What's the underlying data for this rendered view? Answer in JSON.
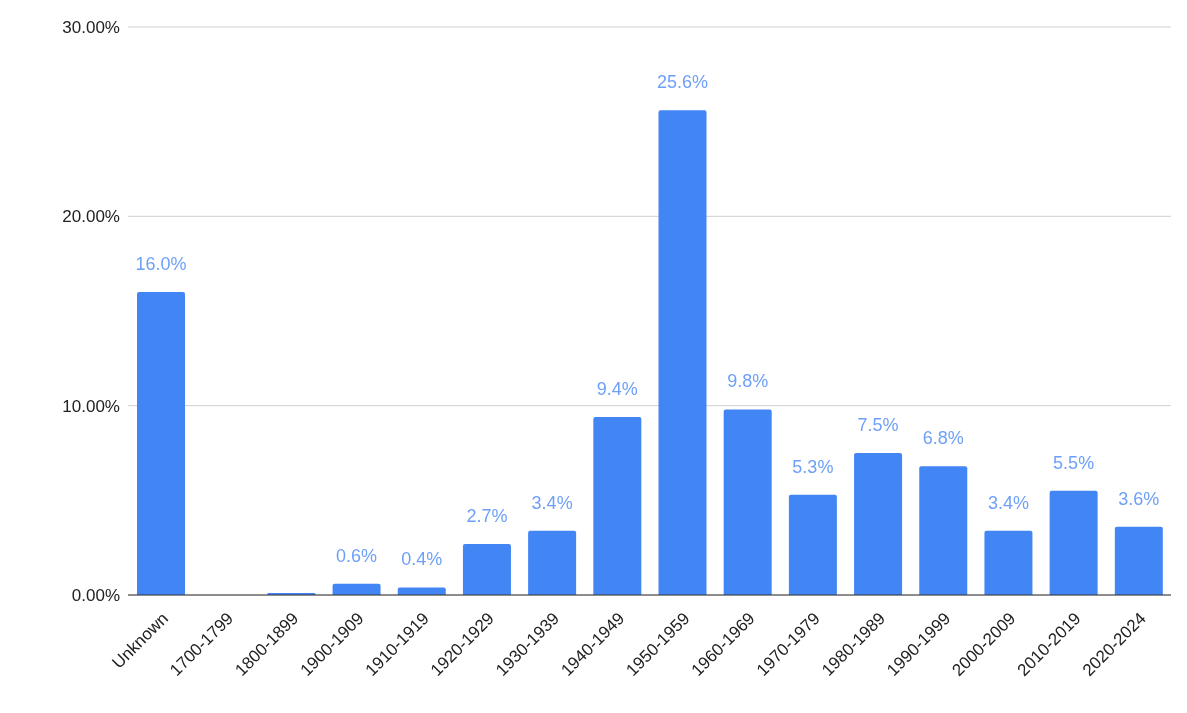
{
  "chart_data": {
    "type": "bar",
    "categories": [
      "Unknown",
      "1700-1799",
      "1800-1899",
      "1900-1909",
      "1910-1919",
      "1920-1929",
      "1930-1939",
      "1940-1949",
      "1950-1959",
      "1960-1969",
      "1970-1979",
      "1980-1989",
      "1990-1999",
      "2000-2009",
      "2010-2019",
      "2020-2024"
    ],
    "values": [
      16.0,
      0,
      0.1,
      0.6,
      0.4,
      2.7,
      3.4,
      9.4,
      25.6,
      9.8,
      5.3,
      7.5,
      6.8,
      3.4,
      5.5,
      3.6
    ],
    "value_labels": [
      "16.0%",
      null,
      null,
      "0.6%",
      "0.4%",
      "2.7%",
      "3.4%",
      "9.4%",
      "25.6%",
      "9.8%",
      "5.3%",
      "7.5%",
      "6.8%",
      "3.4%",
      "5.5%",
      "3.6%"
    ],
    "color": "#4285f4",
    "ylim": [
      0,
      30
    ],
    "yticks": [
      {
        "value": 0,
        "label": "0.00%"
      },
      {
        "value": 10,
        "label": "10.00%"
      },
      {
        "value": 20,
        "label": "20.00%"
      },
      {
        "value": 30,
        "label": "30.00%"
      }
    ],
    "grid": "y",
    "legend": false
  }
}
